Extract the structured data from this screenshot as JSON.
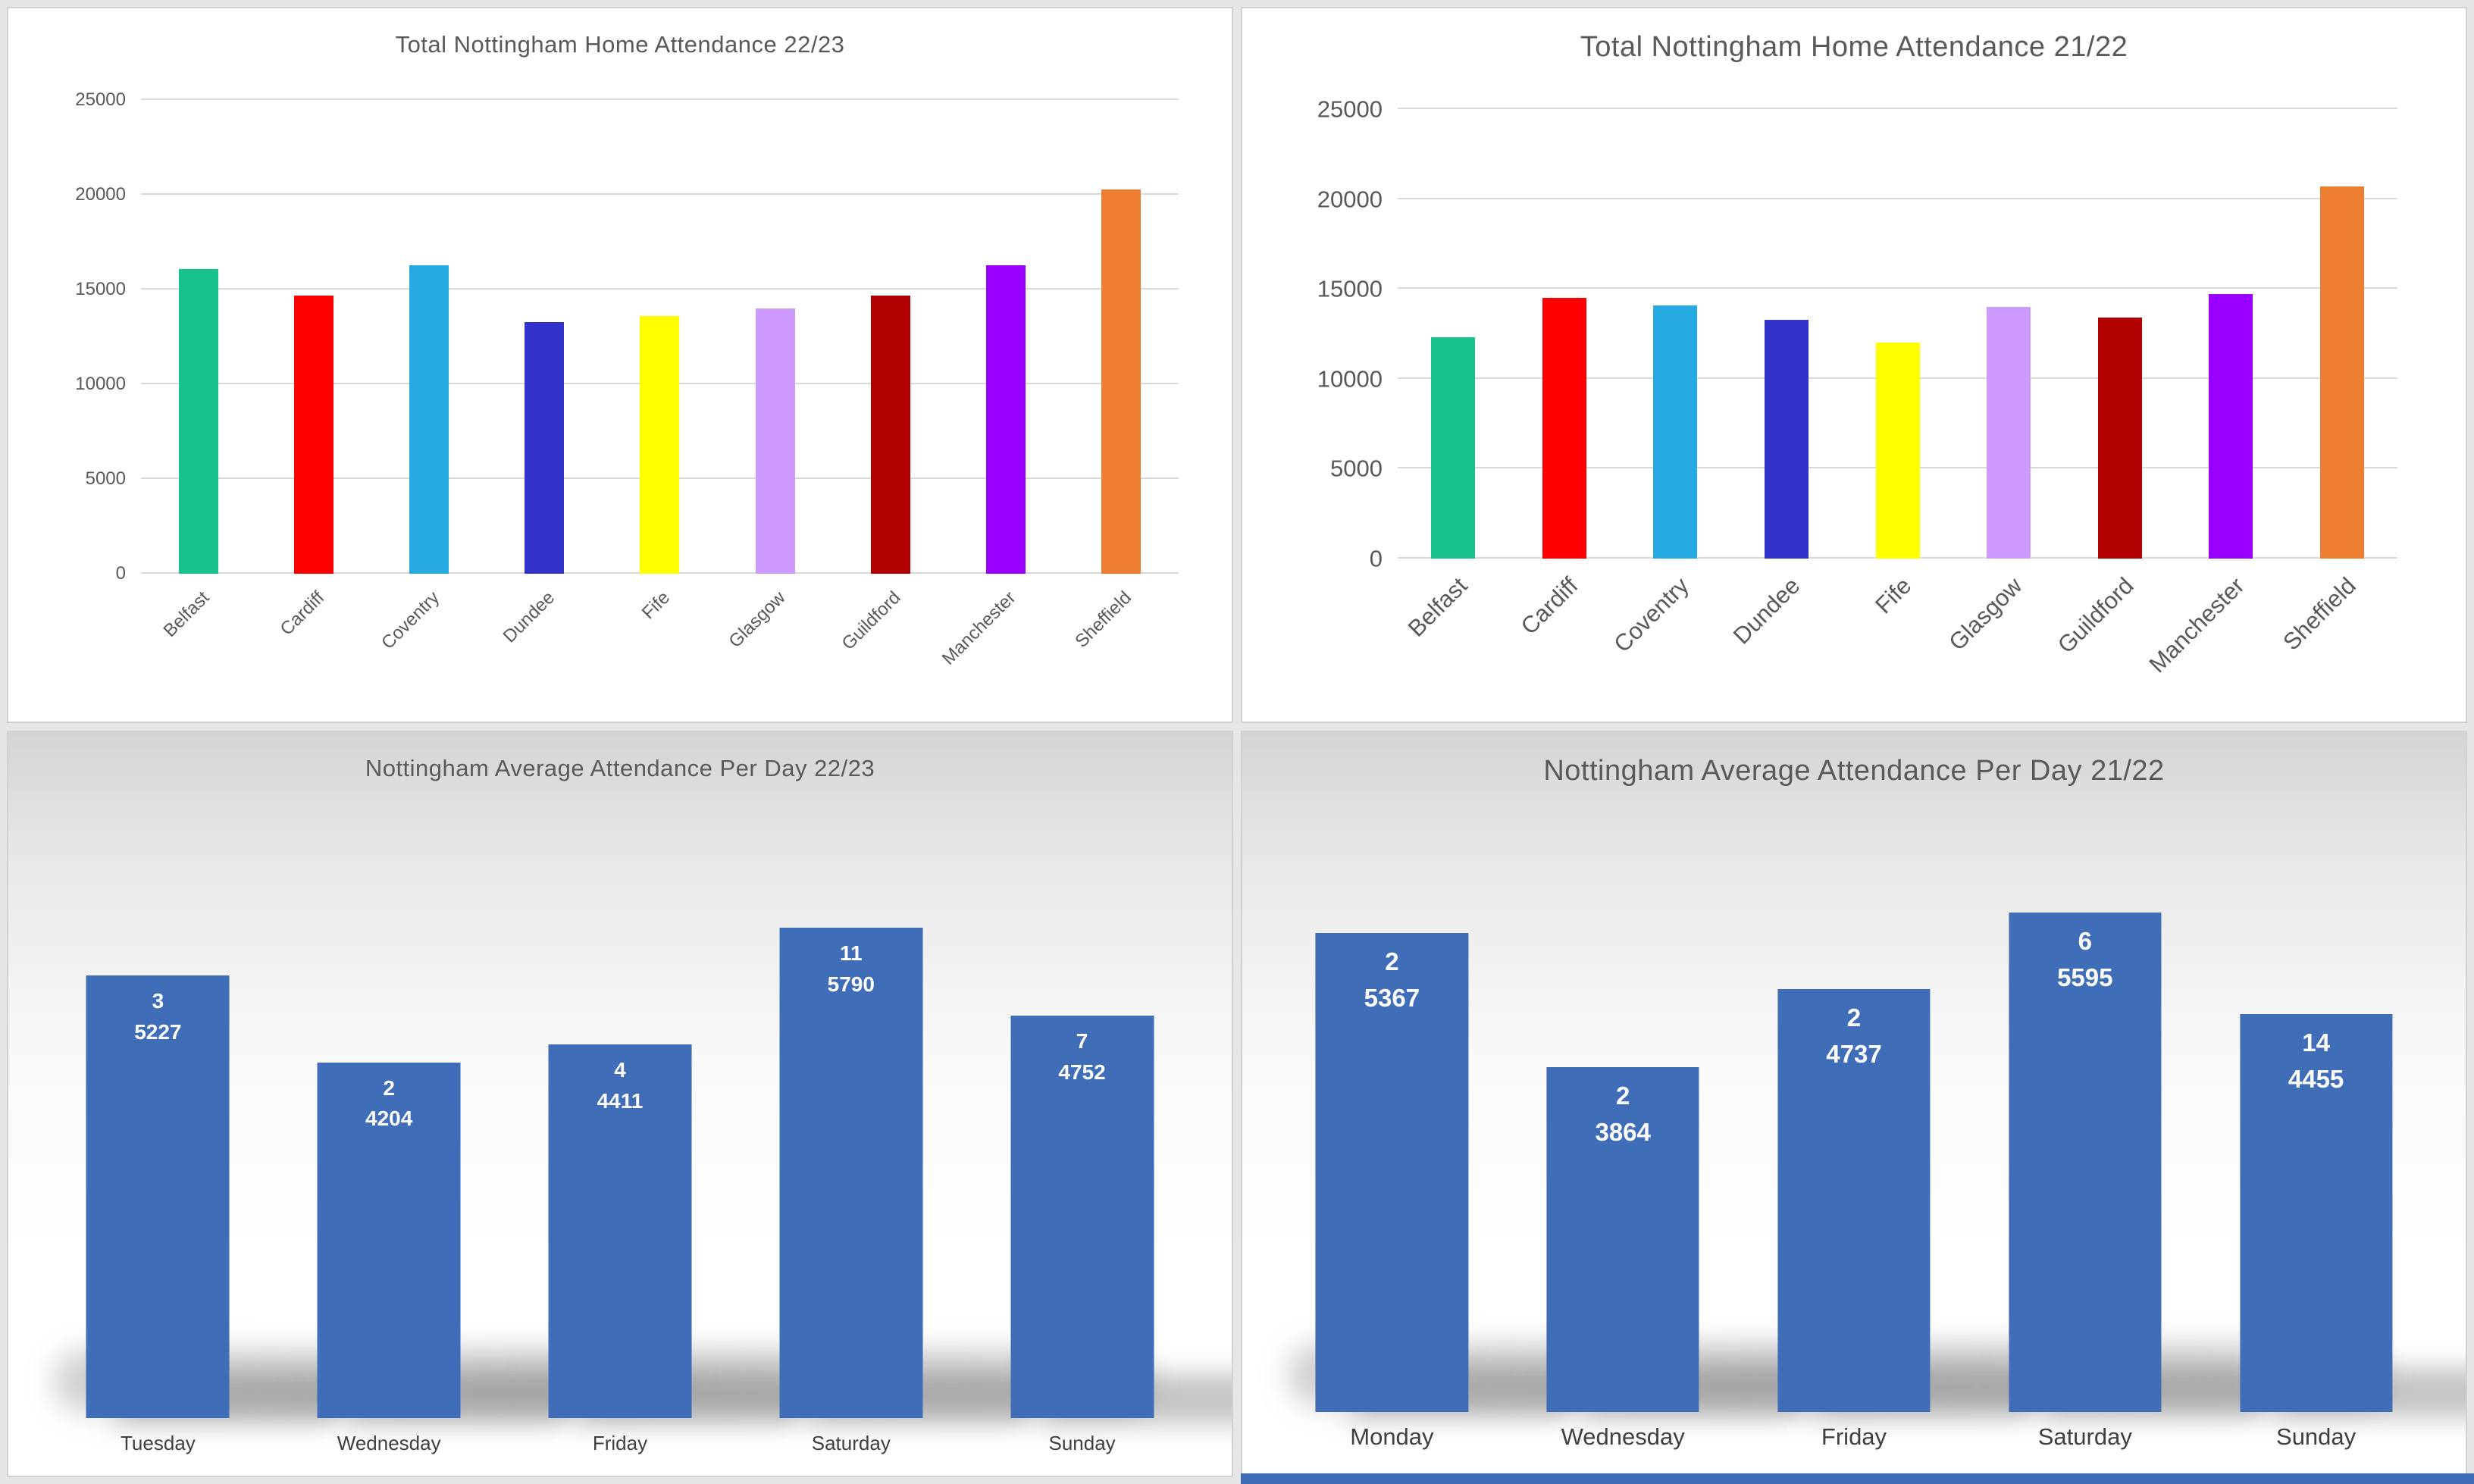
{
  "theme": {
    "page_background": "#e6e6e6",
    "card_border": "#d0d0d0",
    "title_color": "#595959",
    "tick_color": "#595959",
    "gridline_color": "#d9d9d9",
    "bottom_bar_blue": "#3f6db8",
    "bottom_strip_blue": "#3e6cb5"
  },
  "chart_data": [
    {
      "type": "bar",
      "title": "Total Nottingham Home Attendance 22/23",
      "categories": [
        "Belfast",
        "Cardiff",
        "Coventry",
        "Dundee",
        "Fife",
        "Glasgow",
        "Guildford",
        "Manchester",
        "Sheffield"
      ],
      "values": [
        16100,
        14700,
        16300,
        13300,
        13600,
        14000,
        14700,
        16300,
        20300
      ],
      "bar_colors": [
        "#17c08d",
        "#fe0000",
        "#27aae1",
        "#3333cc",
        "#ffff00",
        "#cc99ff",
        "#b00000",
        "#9900ff",
        "#ed7d31"
      ],
      "xlabel": "",
      "ylabel": "",
      "ylim": [
        0,
        25000
      ],
      "ytick_step": 5000,
      "yticks": [
        "0",
        "5000",
        "10000",
        "15000",
        "20000",
        "25000"
      ],
      "grid": true,
      "legend": "none",
      "x_label_rotation": -45
    },
    {
      "type": "bar",
      "title": "Total Nottingham Home Attendance 21/22",
      "categories": [
        "Belfast",
        "Cardiff",
        "Coventry",
        "Dundee",
        "Fife",
        "Glasgow",
        "Guildford",
        "Manchester",
        "Sheffield"
      ],
      "values": [
        12300,
        14500,
        14100,
        13300,
        12000,
        14000,
        13400,
        14700,
        20700
      ],
      "bar_colors": [
        "#17c08d",
        "#fe0000",
        "#27aae1",
        "#3333cc",
        "#ffff00",
        "#cc99ff",
        "#b00000",
        "#9900ff",
        "#ed7d31"
      ],
      "xlabel": "",
      "ylabel": "",
      "ylim": [
        0,
        25000
      ],
      "ytick_step": 5000,
      "yticks": [
        "0",
        "5000",
        "10000",
        "15000",
        "20000",
        "25000"
      ],
      "grid": true,
      "legend": "none",
      "x_label_rotation": -45
    },
    {
      "type": "bar",
      "title": "Nottingham Average Attendance Per Day 22/23",
      "categories": [
        "Tuesday",
        "Wednesday",
        "Friday",
        "Saturday",
        "Sunday"
      ],
      "values": [
        5227,
        4204,
        4411,
        5790,
        4752
      ],
      "counts": [
        3,
        2,
        4,
        11,
        7
      ],
      "bar_color": "#3f6db8",
      "label_color": "#ffffff",
      "xlabel": "",
      "ylabel": "",
      "ylim": [
        0,
        7200
      ],
      "grid": false,
      "legend": "none",
      "style": "3d-shadow"
    },
    {
      "type": "bar",
      "title": "Nottingham Average Attendance Per Day 21/22",
      "categories": [
        "Monday",
        "Wednesday",
        "Friday",
        "Saturday",
        "Sunday"
      ],
      "values": [
        5367,
        3864,
        4737,
        5595,
        4455
      ],
      "counts": [
        2,
        2,
        2,
        6,
        14
      ],
      "bar_color": "#3f6db8",
      "label_color": "#ffffff",
      "xlabel": "",
      "ylabel": "",
      "ylim": [
        0,
        6700
      ],
      "grid": false,
      "legend": "none",
      "style": "3d-shadow"
    }
  ]
}
